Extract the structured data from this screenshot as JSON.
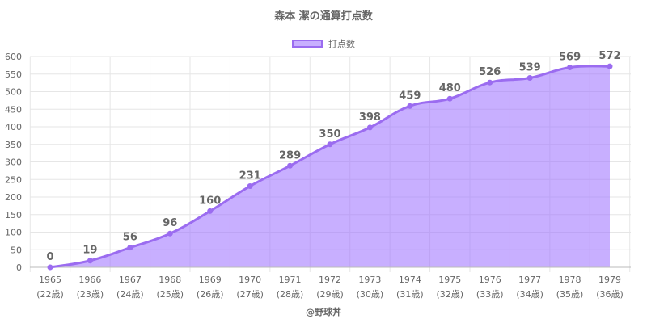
{
  "title": "森本 潔の通算打点数",
  "legend": {
    "series_label": "打点数"
  },
  "credit": "@野球丼",
  "colors": {
    "line": "#9b6cf0",
    "fill": "rgba(155,110,255,0.55)",
    "grid": "#e6e6e6",
    "text": "#666666"
  },
  "chart_data": {
    "type": "area",
    "title": "森本 潔の通算打点数",
    "x": [
      "1965",
      "1966",
      "1967",
      "1968",
      "1969",
      "1970",
      "1971",
      "1972",
      "1973",
      "1974",
      "1975",
      "1976",
      "1977",
      "1978",
      "1979"
    ],
    "x_sub": [
      "(22歳)",
      "(23歳)",
      "(24歳)",
      "(25歳)",
      "(26歳)",
      "(27歳)",
      "(28歳)",
      "(29歳)",
      "(30歳)",
      "(31歳)",
      "(32歳)",
      "(33歳)",
      "(34歳)",
      "(35歳)",
      "(36歳)"
    ],
    "series": [
      {
        "name": "打点数",
        "values": [
          0,
          19,
          56,
          96,
          160,
          231,
          289,
          350,
          398,
          459,
          480,
          526,
          539,
          569,
          572
        ]
      }
    ],
    "ylim": [
      0,
      600
    ],
    "yticks": [
      0,
      50,
      100,
      150,
      200,
      250,
      300,
      350,
      400,
      450,
      500,
      550,
      600
    ],
    "grid": true,
    "legend_position": "top-center"
  }
}
